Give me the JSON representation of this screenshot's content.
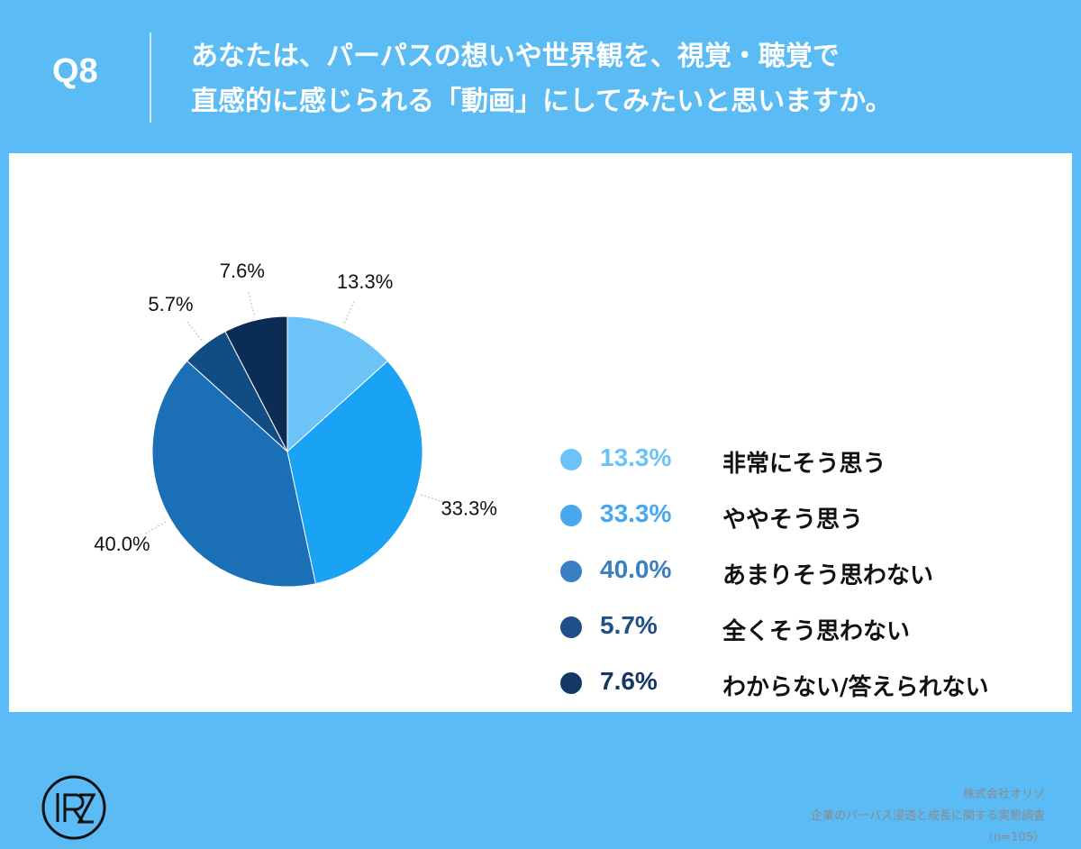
{
  "question": {
    "number": "Q8",
    "line1": "あなたは、パーパスの想いや世界観を、視覚・聴覚で",
    "line2": "直感的に感じられる「動画」にしてみたいと思いますか。"
  },
  "chart_data": {
    "type": "pie",
    "slices": [
      {
        "label": "非常にそう思う",
        "value": 13.3,
        "value_label": "13.3%",
        "color": "#6cc3f7"
      },
      {
        "label": "ややそう思う",
        "value": 33.3,
        "value_label": "33.3%",
        "color": "#1aa3f4"
      },
      {
        "label": "あまりそう思わない",
        "value": 40.0,
        "value_label": "40.0%",
        "color": "#1b6fb6"
      },
      {
        "label": "全くそう思わない",
        "value": 5.7,
        "value_label": "5.7%",
        "color": "#114c83"
      },
      {
        "label": "わからない/答えられない",
        "value": 7.6,
        "value_label": "7.6%",
        "color": "#0b2c55"
      }
    ],
    "legend_position": "right"
  },
  "legend_colors": {
    "pct_colors": [
      "#6cc3f7",
      "#47a7ef",
      "#3a7fc2",
      "#1e4f86",
      "#133866"
    ]
  },
  "credits": {
    "line1": "株式会社オリゾ",
    "line2": "企業のパーパス浸透と成長に関する実態調査",
    "line3": "（n=105）"
  },
  "logo": {
    "icon": "orizo-logo"
  }
}
